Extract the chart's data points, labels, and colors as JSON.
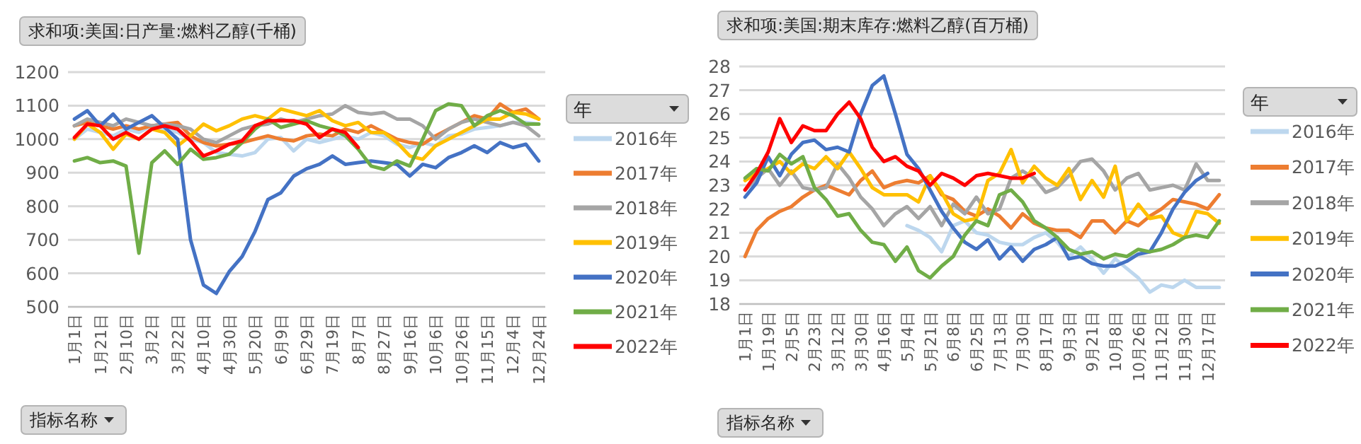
{
  "chart_data": [
    {
      "type": "line",
      "title": "求和项:美国:日产量:燃料乙醇(千桶)",
      "legend_title": "年",
      "legend": "right",
      "grid": "y",
      "line_style": "solid",
      "marker": "none",
      "annotations": [
        "指标名称"
      ],
      "categories": [
        "1月1日",
        null,
        "1月21日",
        null,
        "2月10日",
        null,
        "3月2日",
        null,
        "3月22日",
        null,
        "4月10日",
        null,
        "4月30日",
        null,
        "5月20日",
        null,
        "6月9日",
        null,
        "6月29日",
        null,
        "7月19日",
        null,
        "8月7日",
        null,
        "8月27日",
        null,
        "9月16日",
        null,
        "10月6日",
        null,
        "10月26日",
        null,
        "11月15日",
        null,
        "12月4日",
        null,
        "12月24日"
      ],
      "ylim": [
        500,
        1200
      ],
      "yticks": [
        500,
        600,
        700,
        800,
        900,
        1000,
        1100,
        1200
      ],
      "series": [
        {
          "name": "2016年",
          "color": "#bdd7ee",
          "values": [
            1000,
            1030,
            1020,
            1010,
            1030,
            1020,
            1040,
            1030,
            1020,
            1000,
            990,
            960,
            955,
            950,
            960,
            1000,
            1005,
            965,
            1000,
            990,
            1000,
            1010,
            1000,
            1020,
            1010,
            985,
            975,
            990,
            980,
            1010,
            1015,
            1030,
            1035,
            1040,
            1050,
            1050,
            1045
          ]
        },
        {
          "name": "2017年",
          "color": "#ed7d31",
          "values": [
            1040,
            1050,
            1040,
            1030,
            1040,
            1030,
            1040,
            1045,
            1050,
            1010,
            990,
            980,
            985,
            990,
            1000,
            1010,
            1000,
            995,
            1010,
            1015,
            1010,
            1030,
            1020,
            1040,
            1020,
            1000,
            990,
            985,
            1010,
            1030,
            1050,
            1070,
            1060,
            1105,
            1080,
            1090,
            1060
          ]
        },
        {
          "name": "2018年",
          "color": "#a5a5a5",
          "values": [
            1040,
            1060,
            1050,
            1040,
            1060,
            1050,
            1040,
            1045,
            1040,
            1030,
            1000,
            990,
            1010,
            1030,
            1040,
            1045,
            1060,
            1050,
            1060,
            1070,
            1075,
            1100,
            1080,
            1075,
            1080,
            1060,
            1060,
            1040,
            1000,
            1030,
            1050,
            1060,
            1050,
            1040,
            1050,
            1040,
            1010
          ]
        },
        {
          "name": "2019年",
          "color": "#ffc000",
          "values": [
            1000,
            1045,
            1020,
            970,
            1015,
            1000,
            1030,
            1020,
            980,
            1010,
            1045,
            1025,
            1040,
            1060,
            1070,
            1060,
            1090,
            1080,
            1070,
            1085,
            1055,
            1040,
            1050,
            1020,
            1020,
            990,
            950,
            940,
            980,
            1000,
            1020,
            1040,
            1060,
            1060,
            1080,
            1075,
            1060
          ]
        },
        {
          "name": "2020年",
          "color": "#4472c4",
          "values": [
            1060,
            1085,
            1040,
            1075,
            1030,
            1050,
            1070,
            1035,
            1000,
            700,
            565,
            540,
            605,
            650,
            725,
            820,
            840,
            890,
            912,
            925,
            950,
            925,
            930,
            935,
            930,
            925,
            890,
            925,
            915,
            945,
            960,
            980,
            960,
            990,
            975,
            985,
            935
          ]
        },
        {
          "name": "2021年",
          "color": "#70ad47",
          "values": [
            935,
            945,
            930,
            935,
            920,
            660,
            930,
            965,
            925,
            970,
            940,
            945,
            955,
            990,
            1030,
            1060,
            1035,
            1045,
            1055,
            1040,
            1030,
            1010,
            970,
            920,
            910,
            935,
            920,
            1000,
            1085,
            1105,
            1100,
            1040,
            1070,
            1085,
            1070,
            1045,
            1045
          ]
        },
        {
          "name": "2022年",
          "color": "#ff0000",
          "values": [
            1005,
            1045,
            1040,
            1000,
            1020,
            1000,
            1030,
            1040,
            1030,
            995,
            950,
            965,
            985,
            995,
            1040,
            1055,
            1055,
            1055,
            1045,
            1005,
            1030,
            1020,
            975,
            null,
            null,
            null,
            null,
            null,
            null,
            null,
            null,
            null,
            null,
            null,
            null,
            null,
            null
          ]
        }
      ]
    },
    {
      "type": "line",
      "title": "求和项:美国:期末库存:燃料乙醇(百万桶)",
      "legend_title": "年",
      "legend": "right",
      "grid": "y",
      "line_style": "solid",
      "marker": "none",
      "annotations": [
        "指标名称"
      ],
      "categories": [
        "1月1日",
        null,
        "1月19日",
        null,
        "2月5日",
        null,
        "2月23日",
        null,
        "3月12日",
        null,
        "3月30日",
        null,
        "4月16日",
        null,
        "5月4日",
        null,
        "5月21日",
        null,
        "6月8日",
        null,
        "6月25日",
        null,
        "7月13日",
        null,
        "7月30日",
        null,
        "8月17日",
        null,
        "9月3日",
        null,
        "9月21日",
        null,
        "10月8日",
        null,
        "10月26日",
        null,
        "11月12日",
        null,
        "11月30日",
        null,
        "12月17日",
        null
      ],
      "ylim": [
        18,
        28
      ],
      "yticks": [
        18,
        19,
        20,
        21,
        22,
        23,
        24,
        25,
        26,
        27,
        28
      ],
      "series": [
        {
          "name": "2016年",
          "color": "#bdd7ee",
          "values": [
            null,
            null,
            null,
            null,
            null,
            null,
            null,
            null,
            null,
            null,
            null,
            null,
            null,
            null,
            21.3,
            21.1,
            20.8,
            20.2,
            21.3,
            21.5,
            21.0,
            20.9,
            20.6,
            20.5,
            20.5,
            20.8,
            21.0,
            20.6,
            20.0,
            20.4,
            19.9,
            19.3,
            19.9,
            19.5,
            19.1,
            18.5,
            18.8,
            18.7,
            19.0,
            18.7,
            18.7,
            18.7
          ]
        },
        {
          "name": "2017年",
          "color": "#ed7d31",
          "values": [
            20.0,
            21.1,
            21.6,
            21.9,
            22.1,
            22.5,
            22.8,
            23.0,
            22.8,
            22.6,
            23.2,
            23.6,
            22.9,
            23.1,
            23.2,
            23.1,
            23.4,
            22.6,
            22.4,
            21.9,
            21.7,
            22.0,
            21.7,
            21.2,
            21.8,
            21.4,
            21.2,
            21.1,
            21.1,
            20.8,
            21.5,
            21.5,
            21.0,
            21.5,
            21.3,
            21.7,
            22.0,
            22.4,
            22.3,
            22.2,
            22.0,
            22.6
          ]
        },
        {
          "name": "2018年",
          "color": "#a5a5a5",
          "values": [
            22.8,
            23.3,
            23.7,
            23.0,
            23.6,
            22.9,
            22.8,
            22.9,
            23.9,
            23.3,
            22.5,
            22.0,
            21.3,
            21.8,
            22.1,
            21.6,
            22.1,
            21.3,
            22.2,
            21.8,
            22.5,
            21.8,
            22.0,
            23.3,
            23.6,
            23.3,
            22.7,
            22.9,
            23.4,
            24.0,
            24.1,
            23.6,
            22.8,
            23.3,
            23.5,
            22.8,
            22.9,
            23.0,
            22.8,
            23.9,
            23.2,
            23.2
          ]
        },
        {
          "name": "2019年",
          "color": "#ffc000",
          "values": [
            23.2,
            23.5,
            23.7,
            24.0,
            23.5,
            23.9,
            23.7,
            24.2,
            23.7,
            24.4,
            23.7,
            22.9,
            22.6,
            22.6,
            22.6,
            22.3,
            23.4,
            22.7,
            21.8,
            21.5,
            21.6,
            23.2,
            23.5,
            24.5,
            23.1,
            23.8,
            23.3,
            23.0,
            23.7,
            22.4,
            23.2,
            22.5,
            23.8,
            21.5,
            22.2,
            21.6,
            21.7,
            21.0,
            20.8,
            21.9,
            21.8,
            21.4
          ]
        },
        {
          "name": "2020年",
          "color": "#4472c4",
          "values": [
            22.5,
            23.1,
            24.2,
            23.4,
            24.3,
            24.8,
            24.9,
            24.5,
            24.6,
            24.4,
            26.0,
            27.2,
            27.6,
            26.0,
            24.3,
            23.7,
            22.8,
            21.9,
            21.2,
            20.6,
            20.3,
            20.7,
            19.9,
            20.4,
            19.8,
            20.3,
            20.5,
            20.8,
            19.9,
            20.0,
            19.7,
            19.6,
            19.6,
            19.8,
            20.1,
            20.2,
            21.0,
            22.0,
            22.7,
            23.2,
            23.5,
            null
          ]
        },
        {
          "name": "2021年",
          "color": "#70ad47",
          "values": [
            23.3,
            23.7,
            23.6,
            24.3,
            23.9,
            24.2,
            22.9,
            22.4,
            21.7,
            21.8,
            21.1,
            20.6,
            20.5,
            19.8,
            20.4,
            19.4,
            19.1,
            19.6,
            20.0,
            20.9,
            21.5,
            21.3,
            22.6,
            22.8,
            22.3,
            21.5,
            21.2,
            20.8,
            20.3,
            20.1,
            20.2,
            19.9,
            20.1,
            20.0,
            20.3,
            20.2,
            20.3,
            20.5,
            20.8,
            20.9,
            20.8,
            21.5
          ]
        },
        {
          "name": "2022年",
          "color": "#ff0000",
          "values": [
            22.8,
            23.5,
            24.4,
            25.8,
            24.8,
            25.5,
            25.3,
            25.3,
            26.0,
            26.5,
            25.8,
            24.6,
            24.0,
            24.2,
            23.8,
            23.6,
            23.0,
            23.5,
            23.3,
            23.0,
            23.4,
            23.5,
            23.4,
            23.3,
            23.3,
            23.5,
            null,
            null,
            null,
            null,
            null,
            null,
            null,
            null,
            null,
            null,
            null,
            null,
            null,
            null,
            null,
            null
          ]
        }
      ]
    }
  ]
}
